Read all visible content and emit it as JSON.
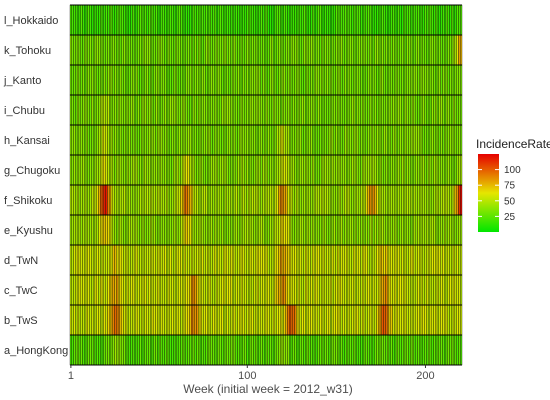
{
  "chart_data": {
    "type": "heatmap",
    "xlabel": "Week (initial week = 2012_w31)",
    "ylabel": "",
    "x_ticks": [
      1,
      100,
      200
    ],
    "x_range": [
      1,
      220
    ],
    "rows": [
      "l_Hokkaido",
      "k_Tohoku",
      "j_Kanto",
      "i_Chubu",
      "h_Kansai",
      "g_Chugoku",
      "f_Shikoku",
      "e_Kyushu",
      "d_TwN",
      "c_TwC",
      "b_TwS",
      "a_HongKong"
    ],
    "legend": {
      "title": "IncidenceRate",
      "ticks": [
        25,
        50,
        75,
        100
      ],
      "range": [
        0,
        125
      ],
      "colors": [
        "#00e600",
        "#e6e600",
        "#e60000"
      ]
    },
    "cell_border_color": "#000000",
    "rows_profile": {
      "l_Hokkaido": {
        "base": 18,
        "peaks": []
      },
      "k_Tohoku": {
        "base": 32,
        "peaks": [
          [
            220,
            80
          ]
        ]
      },
      "j_Kanto": {
        "base": 32,
        "peaks": []
      },
      "i_Chubu": {
        "base": 35,
        "peaks": [
          [
            20,
            50
          ]
        ]
      },
      "h_Kansai": {
        "base": 35,
        "peaks": [
          [
            20,
            55
          ],
          [
            120,
            55
          ]
        ]
      },
      "g_Chugoku": {
        "base": 38,
        "peaks": [
          [
            20,
            60
          ],
          [
            66,
            60
          ],
          [
            120,
            60
          ]
        ]
      },
      "f_Shikoku": {
        "base": 45,
        "peaks": [
          [
            20,
            120
          ],
          [
            66,
            90
          ],
          [
            120,
            90
          ],
          [
            170,
            85
          ],
          [
            220,
            115
          ]
        ]
      },
      "e_Kyushu": {
        "base": 40,
        "peaks": [
          [
            20,
            75
          ],
          [
            66,
            70
          ],
          [
            120,
            70
          ]
        ]
      },
      "d_TwN": {
        "base": 55,
        "peaks": [
          [
            26,
            70
          ],
          [
            120,
            80
          ],
          [
            177,
            70
          ]
        ]
      },
      "c_TwC": {
        "base": 55,
        "peaks": [
          [
            26,
            80
          ],
          [
            70,
            85
          ],
          [
            120,
            85
          ],
          [
            177,
            85
          ]
        ]
      },
      "b_TwS": {
        "base": 55,
        "peaks": [
          [
            26,
            95
          ],
          [
            70,
            90
          ],
          [
            125,
            100
          ],
          [
            177,
            100
          ]
        ]
      },
      "a_HongKong": {
        "base": 25,
        "peaks": [
          [
            26,
            40
          ],
          [
            120,
            40
          ]
        ]
      }
    }
  }
}
